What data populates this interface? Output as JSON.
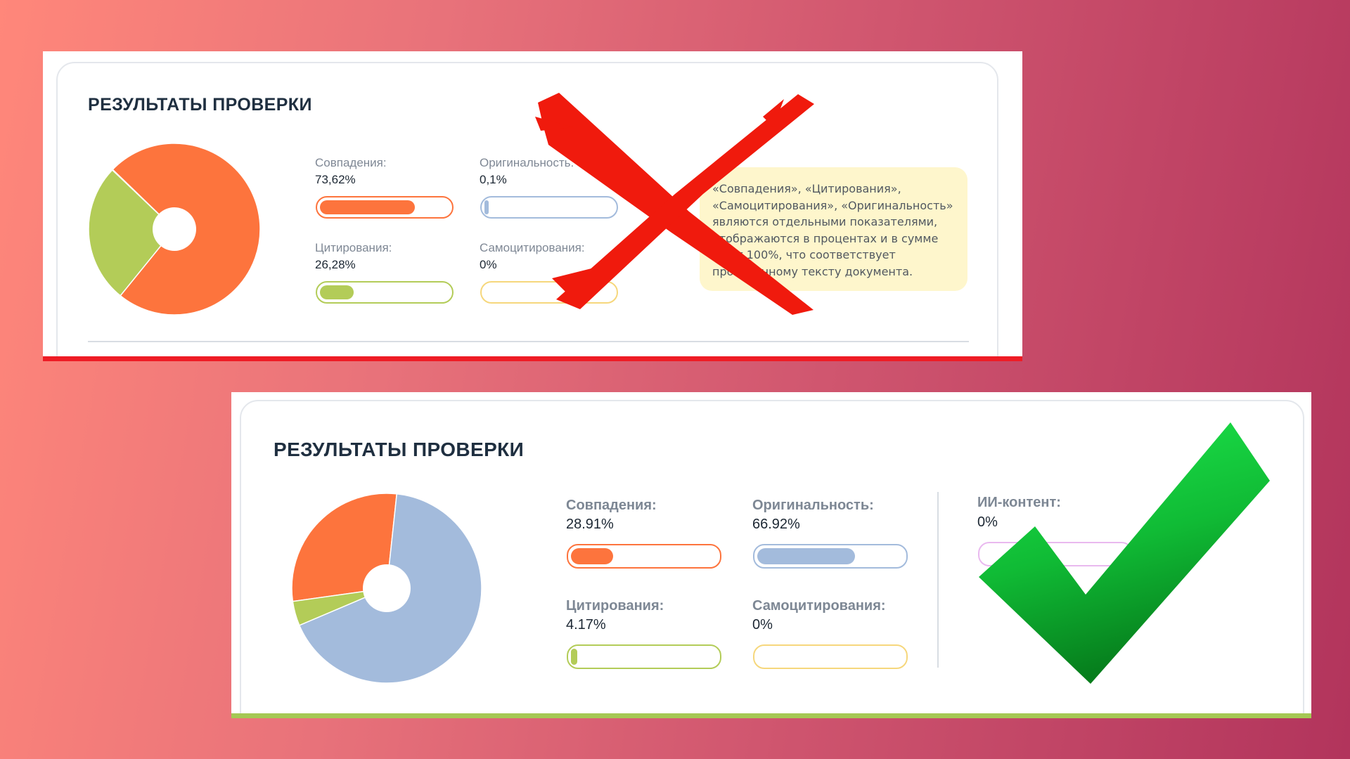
{
  "colors": {
    "matches": "#fd743d",
    "originality": "#a3bbdc",
    "citations": "#b3cc58",
    "self_citations": "#f6d77c",
    "ai_content": "#e9b9ef",
    "bad_mark": "#f01a0d",
    "good_mark": "#0ea533",
    "bad_underline": "#ee1c25",
    "good_underline": "#a5c854"
  },
  "top_card": {
    "title": "РЕЗУЛЬТАТЫ ПРОВЕРКИ",
    "metrics": {
      "matches": {
        "label": "Совпадения:",
        "value": "73,62%",
        "fill": 0.7362
      },
      "originality": {
        "label": "Оригинальность:",
        "value": "0,1%",
        "fill": 0.001
      },
      "citations": {
        "label": "Цитирования:",
        "value": "26,28%",
        "fill": 0.2628
      },
      "self_citations": {
        "label": "Самоцитирования:",
        "value": "0%",
        "fill": 0
      }
    },
    "note": [
      "«Совпадения», «Цитирования»,",
      "«Самоцитирования», «Оригинальность»",
      "являются отдельными показателями,",
      "отображаются в процентах и в сумме",
      "дают 100%, что соответствует",
      "проверенному тексту документа."
    ]
  },
  "bottom_card": {
    "title": "РЕЗУЛЬТАТЫ ПРОВЕРКИ",
    "metrics": {
      "matches": {
        "label": "Совпадения:",
        "value": "28.91%",
        "fill": 0.2891
      },
      "originality": {
        "label": "Оригинальность:",
        "value": "66.92%",
        "fill": 0.6692
      },
      "citations": {
        "label": "Цитирования:",
        "value": "4.17%",
        "fill": 0.0417
      },
      "self_citations": {
        "label": "Самоцитирования:",
        "value": "0%",
        "fill": 0
      },
      "ai_content": {
        "label": "ИИ-контент:",
        "value": "0%",
        "fill": 0
      }
    }
  },
  "chart_data": [
    {
      "type": "pie",
      "donut": true,
      "categories": [
        "Совпадения",
        "Цитирования",
        "Оригинальность",
        "Самоцитирования"
      ],
      "values": [
        73.62,
        26.28,
        0.1,
        0
      ],
      "colors": [
        "#fd743d",
        "#b3cc58",
        "#a3bbdc",
        "#f6d77c"
      ]
    },
    {
      "type": "pie",
      "donut": true,
      "categories": [
        "Совпадения",
        "Оригинальность",
        "Цитирования",
        "Самоцитирования"
      ],
      "values": [
        28.91,
        66.92,
        4.17,
        0
      ],
      "colors": [
        "#fd743d",
        "#a3bbdc",
        "#b3cc58",
        "#f6d77c"
      ]
    }
  ],
  "icons": {
    "reject": "cross-mark-icon",
    "approve": "check-mark-icon"
  }
}
